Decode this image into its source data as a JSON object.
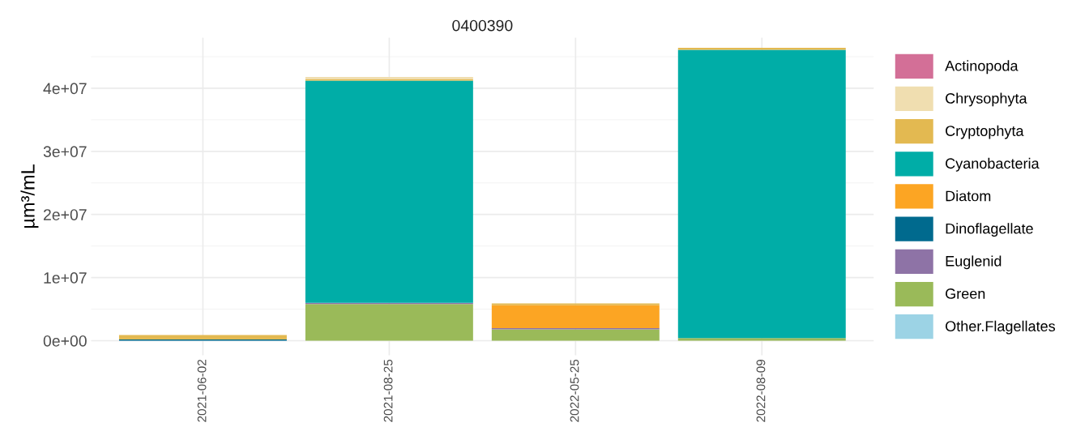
{
  "chart_data": {
    "type": "bar",
    "title": "0400390",
    "ylabel": "µm³/mL",
    "stacked": true,
    "categories": [
      "2021-06-02",
      "2021-08-25",
      "2022-05-25",
      "2022-08-09"
    ],
    "series": [
      {
        "name": "Other.Flagellates",
        "color": "#9cd3e5",
        "values": [
          0,
          0,
          0,
          0
        ]
      },
      {
        "name": "Green",
        "color": "#9aba59",
        "values": [
          0,
          5800000,
          1800000,
          400000
        ]
      },
      {
        "name": "Euglenid",
        "color": "#8e73a6",
        "values": [
          0,
          200000,
          200000,
          0
        ]
      },
      {
        "name": "Dinoflagellate",
        "color": "#006a8e",
        "values": [
          200000,
          0,
          0,
          0
        ]
      },
      {
        "name": "Diatom",
        "color": "#fca523",
        "values": [
          0,
          0,
          3600000,
          0
        ]
      },
      {
        "name": "Cyanobacteria",
        "color": "#00ada7",
        "values": [
          0,
          35200000,
          0,
          45700000
        ]
      },
      {
        "name": "Cryptophyta",
        "color": "#e3b951",
        "values": [
          700000,
          200000,
          300000,
          300000
        ]
      },
      {
        "name": "Chrysophyta",
        "color": "#f0deb0",
        "values": [
          0,
          400000,
          0,
          0
        ]
      },
      {
        "name": "Actinopoda",
        "color": "#d36f97",
        "values": [
          0,
          0,
          0,
          0
        ]
      }
    ],
    "ylim": [
      -2300000,
      48000000
    ],
    "yticks": [
      {
        "value": 0,
        "label": "0e+00"
      },
      {
        "value": 10000000,
        "label": "1e+07"
      },
      {
        "value": 20000000,
        "label": "2e+07"
      },
      {
        "value": 30000000,
        "label": "3e+07"
      },
      {
        "value": 40000000,
        "label": "4e+07"
      }
    ],
    "grid": true,
    "legend": "right"
  }
}
